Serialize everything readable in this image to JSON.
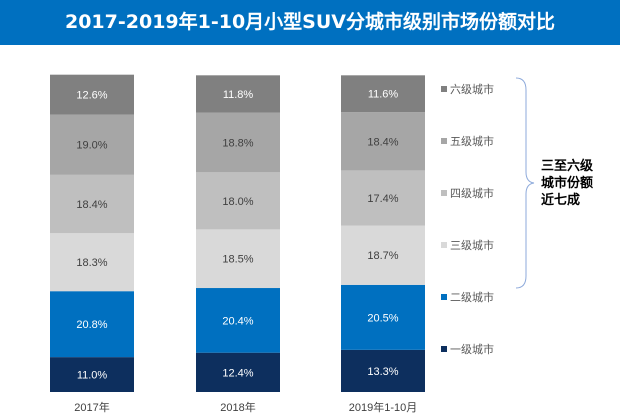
{
  "title": "2017-2019年1-10月小型SUV分城市级别市场份额对比",
  "annotation": [
    "三至六级",
    "城市份额",
    "近七成"
  ],
  "chart_data": {
    "type": "bar",
    "stacked": true,
    "title": "2017-2019年1-10月小型SUV分城市级别市场份额对比",
    "categories": [
      "2017年",
      "2018年",
      "2019年1-10月"
    ],
    "ylim": [
      0,
      100
    ],
    "unit": "%",
    "grid": false,
    "legend_position": "right",
    "series": [
      {
        "name": "一级城市",
        "color": "#0d2f5e",
        "values": [
          11.0,
          12.4,
          13.3
        ]
      },
      {
        "name": "二级城市",
        "color": "#0070c0",
        "values": [
          20.8,
          20.4,
          20.5
        ]
      },
      {
        "name": "三级城市",
        "color": "#d9d9d9",
        "values": [
          18.3,
          18.5,
          18.7
        ]
      },
      {
        "name": "四级城市",
        "color": "#bfbfbf",
        "values": [
          18.4,
          18.0,
          17.4
        ]
      },
      {
        "name": "五级城市",
        "color": "#a6a6a6",
        "values": [
          19.0,
          18.8,
          18.4
        ]
      },
      {
        "name": "六级城市",
        "color": "#808080",
        "values": [
          12.6,
          11.8,
          11.6
        ]
      }
    ]
  }
}
